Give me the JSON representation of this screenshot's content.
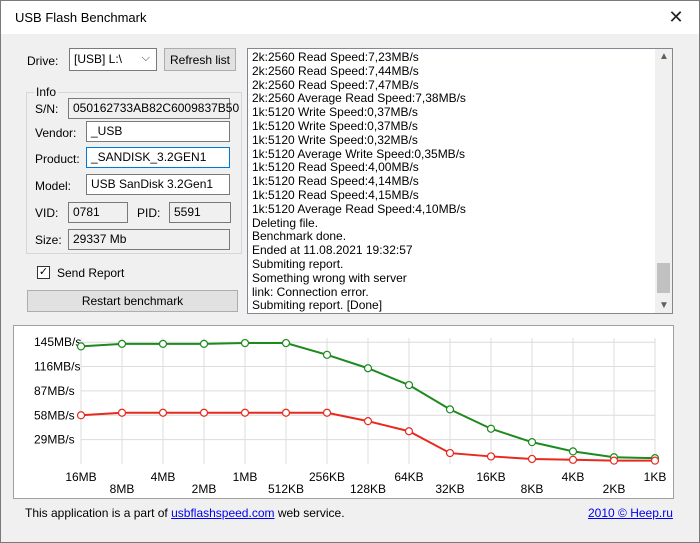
{
  "window": {
    "title": "USB Flash Benchmark"
  },
  "drive": {
    "label": "Drive:",
    "value": "[USB] L:\\",
    "refresh_label": "Refresh list"
  },
  "info": {
    "group_label": "Info",
    "sn_label": "S/N:",
    "sn_value": "050162733AB82C6009837B50",
    "vendor_label": "Vendor:",
    "vendor_value": "_USB",
    "product_label": "Product:",
    "product_value": "_SANDISK_3.2GEN1",
    "model_label": "Model:",
    "model_value": "USB  SanDisk 3.2Gen1",
    "vid_label": "VID:",
    "vid_value": "0781",
    "pid_label": "PID:",
    "pid_value": "5591",
    "size_label": "Size:",
    "size_value": "29337 Mb"
  },
  "send_report": {
    "label": "Send Report",
    "checked": true,
    "mark": "✓"
  },
  "restart_label": "Restart benchmark",
  "log": [
    "2k:2560 Read Speed:7,23MB/s",
    "2k:2560 Read Speed:7,44MB/s",
    "2k:2560 Read Speed:7,47MB/s",
    "2k:2560 Average Read Speed:7,38MB/s",
    "1k:5120 Write Speed:0,37MB/s",
    "1k:5120 Write Speed:0,37MB/s",
    "1k:5120 Write Speed:0,32MB/s",
    "1k:5120 Average Write Speed:0,35MB/s",
    "1k:5120 Read Speed:4,00MB/s",
    "1k:5120 Read Speed:4,14MB/s",
    "1k:5120 Read Speed:4,15MB/s",
    "1k:5120 Average Read Speed:4,10MB/s",
    "Deleting file.",
    "Benchmark done.",
    "Ended at 11.08.2021 19:32:57",
    "Submiting report.",
    "Something wrong with server",
    "link: Connection error.",
    "Submiting report. [Done]"
  ],
  "chart_data": {
    "type": "line",
    "y_ticks": [
      "145MB/s",
      "116MB/s",
      "87MB/s",
      "58MB/s",
      "29MB/s"
    ],
    "y_tick_values": [
      145,
      116,
      87,
      58,
      29
    ],
    "categories": [
      "16MB",
      "8MB",
      "4MB",
      "2MB",
      "1MB",
      "512KB",
      "256KB",
      "128KB",
      "64KB",
      "32KB",
      "16KB",
      "8KB",
      "4KB",
      "2KB",
      "1KB"
    ],
    "ylim": [
      0,
      150
    ],
    "grid": true,
    "series": [
      {
        "color": "#1e8a1e",
        "values": [
          140,
          143,
          143,
          143,
          144,
          144,
          130,
          114,
          94,
          65,
          42,
          26,
          15,
          8,
          7
        ]
      },
      {
        "color": "#e8291d",
        "values": [
          58,
          61,
          61,
          61,
          61,
          61,
          61,
          51,
          39,
          13,
          9,
          6,
          5,
          4,
          4
        ]
      }
    ]
  },
  "footer": {
    "text_before": "This application is a part of",
    "link_text": "usbflashspeed.com",
    "text_after": "web service.",
    "right_link": "2010 © Heep.ru"
  }
}
